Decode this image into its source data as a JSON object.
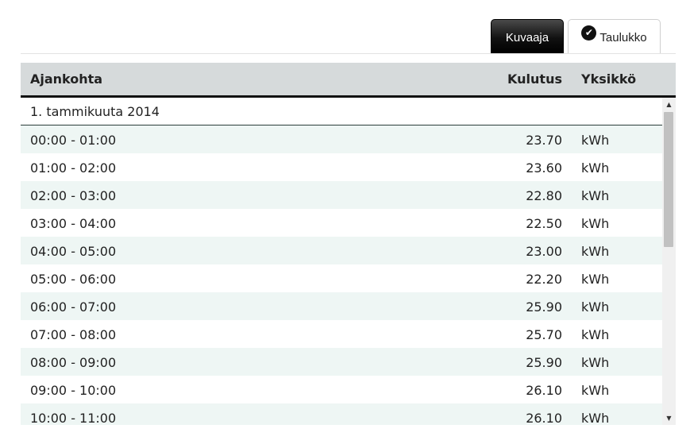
{
  "tabs": {
    "graph_label": "Kuvaaja",
    "table_label": "Taulukko"
  },
  "table": {
    "headers": {
      "time": "Ajankohta",
      "consumption": "Kulutus",
      "unit": "Yksikkö"
    },
    "group_label": "1. tammikuuta 2014",
    "rows": [
      {
        "time": "00:00 - 01:00",
        "value": "23.70",
        "unit": "kWh"
      },
      {
        "time": "01:00 - 02:00",
        "value": "23.60",
        "unit": "kWh"
      },
      {
        "time": "02:00 - 03:00",
        "value": "22.80",
        "unit": "kWh"
      },
      {
        "time": "03:00 - 04:00",
        "value": "22.50",
        "unit": "kWh"
      },
      {
        "time": "04:00 - 05:00",
        "value": "23.00",
        "unit": "kWh"
      },
      {
        "time": "05:00 - 06:00",
        "value": "22.20",
        "unit": "kWh"
      },
      {
        "time": "06:00 - 07:00",
        "value": "25.90",
        "unit": "kWh"
      },
      {
        "time": "07:00 - 08:00",
        "value": "25.70",
        "unit": "kWh"
      },
      {
        "time": "08:00 - 09:00",
        "value": "25.90",
        "unit": "kWh"
      },
      {
        "time": "09:00 - 10:00",
        "value": "26.10",
        "unit": "kWh"
      },
      {
        "time": "10:00 - 11:00",
        "value": "26.10",
        "unit": "kWh"
      }
    ]
  },
  "icons": {
    "selected_tab": "check-circle-icon",
    "scroll_up": "arrow-up-icon",
    "scroll_down": "arrow-down-icon"
  },
  "colors": {
    "row_alt": "#eef6f4",
    "header_bg": "#d6dadb",
    "tab_dark": "#111111"
  }
}
